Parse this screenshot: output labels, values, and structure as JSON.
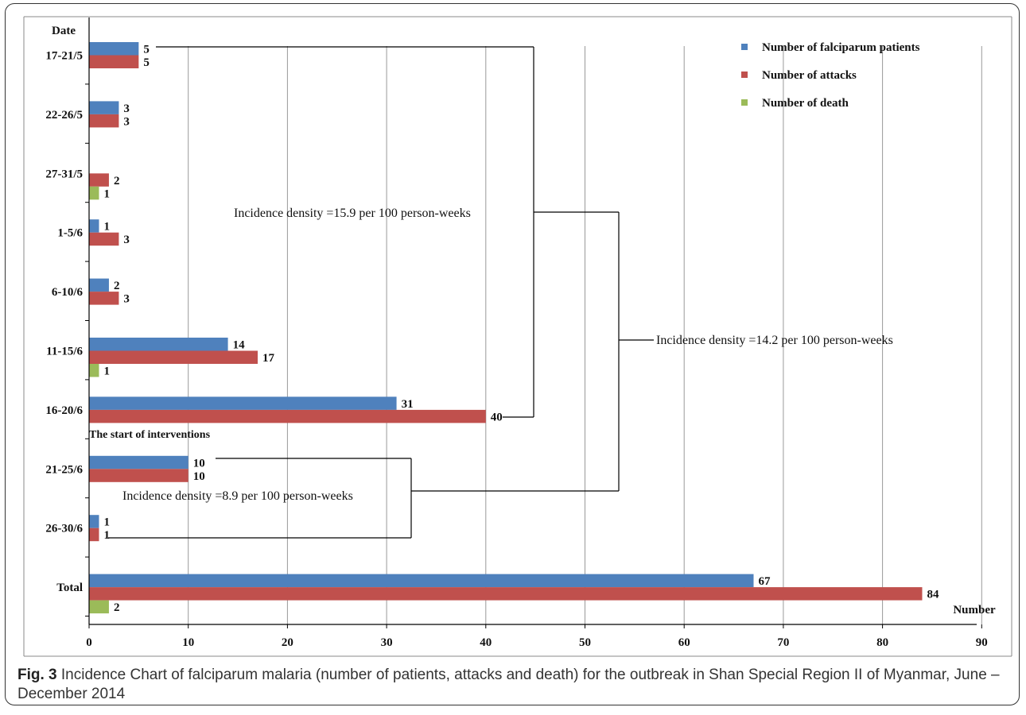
{
  "chart_data": {
    "type": "bar",
    "orientation": "horizontal",
    "ylabel": "Date",
    "xlabel": "Number",
    "xlim": [
      0,
      90
    ],
    "xticks": [
      0,
      10,
      20,
      30,
      40,
      50,
      60,
      70,
      80,
      90
    ],
    "grid": "vertical",
    "legend_position": "top-right",
    "categories": [
      "17-21/5",
      "22-26/5",
      "27-31/5",
      "1-5/6",
      "6-10/6",
      "11-15/6",
      "16-20/6",
      "21-25/6",
      "26-30/6",
      "Total"
    ],
    "series": [
      {
        "name": "Number of falciparum patients",
        "color": "#4f81bd",
        "values": [
          5,
          3,
          0,
          1,
          2,
          14,
          31,
          10,
          1,
          67
        ]
      },
      {
        "name": "Number of attacks",
        "color": "#c0504d",
        "values": [
          5,
          3,
          2,
          3,
          3,
          17,
          40,
          10,
          1,
          84
        ]
      },
      {
        "name": "Number of death",
        "color": "#9bbb59",
        "values": [
          0,
          0,
          1,
          0,
          0,
          1,
          0,
          0,
          0,
          2
        ]
      }
    ],
    "annotations": {
      "interventions": "The start of interventions",
      "density_before": "Incidence density =15.9 per 100 person-weeks",
      "density_total": "Incidence density =14.2 per 100 person-weeks",
      "density_after": "Incidence density =8.9 per 100 person-weeks"
    }
  },
  "caption": {
    "label": "Fig. 3",
    "text": " Incidence Chart of falciparum malaria (number of patients, attacks and death) for the outbreak in Shan Special Region II of Myanmar, June – December 2014"
  }
}
